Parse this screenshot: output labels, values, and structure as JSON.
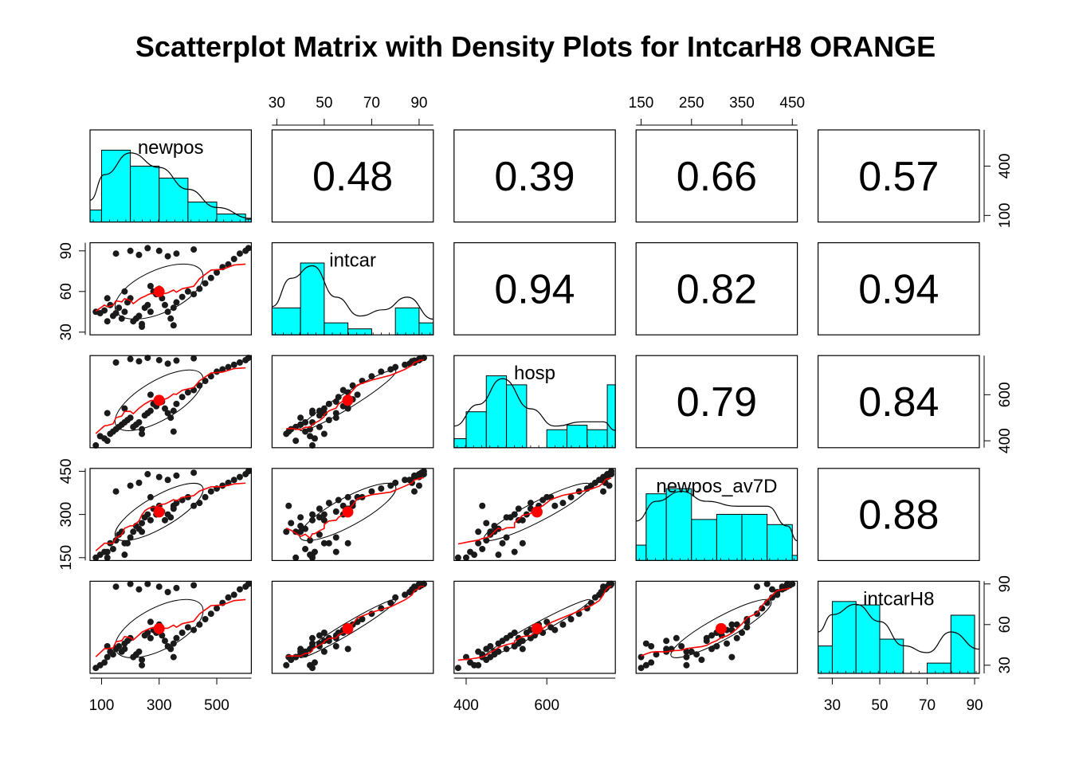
{
  "title": "Scatterplot Matrix with Density Plots for IntcarH8 ORANGE",
  "colors": {
    "hist_fill": "#00FFFF",
    "points": "#1a1a1a",
    "smooth": "#FF0000",
    "centroid": "#FF0000",
    "line": "#000000"
  },
  "chart_data": {
    "type": "scatter",
    "variables": [
      "newpos",
      "intcar",
      "hosp",
      "newpos_av7D",
      "intcarH8"
    ],
    "ranges": {
      "newpos": [
        60,
        620
      ],
      "intcar": [
        28,
        96
      ],
      "hosp": [
        370,
        770
      ],
      "newpos_av7D": [
        140,
        460
      ],
      "intcarH8": [
        24,
        92
      ]
    },
    "ticks": {
      "newpos": {
        "top": [],
        "bottom": [
          "100",
          "300",
          "500"
        ],
        "left": [],
        "right": [
          "100",
          "400"
        ]
      },
      "intcar": {
        "top": [
          "30",
          "50",
          "70",
          "90"
        ],
        "bottom": [],
        "left": [
          "30",
          "60",
          "90"
        ],
        "right": []
      },
      "hosp": {
        "top": [],
        "bottom": [
          "400",
          "600"
        ],
        "left": [],
        "right": [
          "400",
          "600"
        ]
      },
      "newpos_av7D": {
        "top": [
          "150",
          "250",
          "350",
          "450"
        ],
        "bottom": [],
        "left": [
          "150",
          "300",
          "450"
        ],
        "right": []
      },
      "intcarH8": {
        "top": [],
        "bottom": [
          "30",
          "50",
          "70",
          "90"
        ],
        "left": [],
        "right": [
          "30",
          "60",
          "90"
        ]
      }
    },
    "correlations": [
      {
        "row": 0,
        "col": 1,
        "value": "0.48"
      },
      {
        "row": 0,
        "col": 2,
        "value": "0.39"
      },
      {
        "row": 0,
        "col": 3,
        "value": "0.66"
      },
      {
        "row": 0,
        "col": 4,
        "value": "0.57"
      },
      {
        "row": 1,
        "col": 2,
        "value": "0.94"
      },
      {
        "row": 1,
        "col": 3,
        "value": "0.82"
      },
      {
        "row": 1,
        "col": 4,
        "value": "0.94"
      },
      {
        "row": 2,
        "col": 3,
        "value": "0.79"
      },
      {
        "row": 2,
        "col": 4,
        "value": "0.84"
      },
      {
        "row": 3,
        "col": 4,
        "value": "0.88"
      }
    ],
    "histograms": {
      "newpos": {
        "breaks": [
          60,
          100,
          200,
          300,
          400,
          500,
          600,
          620
        ],
        "counts": [
          3,
          18,
          14,
          11,
          5,
          2,
          0.7
        ],
        "density": [
          [
            60,
            6
          ],
          [
            110,
            13
          ],
          [
            200,
            19
          ],
          [
            300,
            15
          ],
          [
            400,
            9
          ],
          [
            500,
            4
          ],
          [
            620,
            1
          ]
        ]
      },
      "intcar": {
        "breaks": [
          28,
          40,
          50,
          60,
          70,
          80,
          90,
          96
        ],
        "counts": [
          9,
          24,
          4,
          2,
          0,
          9,
          4
        ],
        "density": [
          [
            28,
            9
          ],
          [
            36,
            18
          ],
          [
            45,
            22
          ],
          [
            55,
            12
          ],
          [
            65,
            6
          ],
          [
            75,
            8
          ],
          [
            85,
            12
          ],
          [
            96,
            5
          ]
        ]
      },
      "hosp": {
        "breaks": [
          370,
          400,
          450,
          500,
          550,
          600,
          650,
          700,
          750,
          770
        ],
        "counts": [
          2,
          8,
          16,
          14,
          0,
          4,
          5,
          4,
          14
        ],
        "density": [
          [
            370,
            5
          ],
          [
            430,
            10
          ],
          [
            490,
            16
          ],
          [
            560,
            9
          ],
          [
            620,
            5
          ],
          [
            690,
            6
          ],
          [
            740,
            6
          ],
          [
            770,
            4
          ]
        ]
      },
      "newpos_av7D": {
        "breaks": [
          140,
          160,
          200,
          250,
          300,
          350,
          400,
          450,
          460
        ],
        "counts": [
          3,
          13,
          14,
          8,
          9,
          9,
          7,
          1
        ],
        "density": [
          [
            140,
            8
          ],
          [
            180,
            12
          ],
          [
            230,
            14
          ],
          [
            280,
            12
          ],
          [
            340,
            11
          ],
          [
            400,
            11
          ],
          [
            440,
            7
          ],
          [
            460,
            4
          ]
        ]
      },
      "intcarH8": {
        "breaks": [
          24,
          30,
          40,
          50,
          60,
          70,
          80,
          90,
          92
        ],
        "counts": [
          8,
          21,
          20,
          10,
          0,
          3,
          17,
          0
        ],
        "density": [
          [
            24,
            12
          ],
          [
            30,
            17
          ],
          [
            40,
            20
          ],
          [
            50,
            15
          ],
          [
            60,
            8
          ],
          [
            70,
            6
          ],
          [
            80,
            12
          ],
          [
            92,
            7
          ]
        ]
      }
    },
    "observations": [
      [
        80,
        45,
        380,
        150,
        28
      ],
      [
        95,
        44,
        420,
        160,
        30
      ],
      [
        110,
        46,
        410,
        170,
        32
      ],
      [
        120,
        38,
        400,
        150,
        36
      ],
      [
        130,
        50,
        430,
        200,
        40
      ],
      [
        140,
        42,
        440,
        180,
        38
      ],
      [
        150,
        44,
        450,
        210,
        42
      ],
      [
        160,
        48,
        460,
        230,
        44
      ],
      [
        170,
        40,
        470,
        240,
        40
      ],
      [
        180,
        45,
        480,
        160,
        46
      ],
      [
        190,
        52,
        490,
        200,
        48
      ],
      [
        200,
        55,
        500,
        220,
        50
      ],
      [
        210,
        38,
        460,
        240,
        36
      ],
      [
        220,
        40,
        470,
        260,
        38
      ],
      [
        230,
        42,
        480,
        250,
        40
      ],
      [
        240,
        36,
        450,
        270,
        34
      ],
      [
        250,
        48,
        510,
        290,
        52
      ],
      [
        260,
        50,
        520,
        300,
        54
      ],
      [
        270,
        45,
        530,
        280,
        50
      ],
      [
        280,
        60,
        560,
        320,
        56
      ],
      [
        290,
        58,
        550,
        300,
        54
      ],
      [
        300,
        62,
        580,
        330,
        60
      ],
      [
        310,
        55,
        570,
        310,
        52
      ],
      [
        320,
        50,
        540,
        280,
        48
      ],
      [
        330,
        45,
        520,
        300,
        44
      ],
      [
        340,
        40,
        500,
        290,
        42
      ],
      [
        350,
        48,
        530,
        320,
        46
      ],
      [
        360,
        52,
        560,
        340,
        50
      ],
      [
        380,
        56,
        590,
        350,
        54
      ],
      [
        400,
        60,
        610,
        360,
        58
      ],
      [
        420,
        58,
        620,
        330,
        56
      ],
      [
        440,
        62,
        640,
        340,
        60
      ],
      [
        460,
        66,
        660,
        360,
        64
      ],
      [
        480,
        70,
        680,
        380,
        68
      ],
      [
        500,
        74,
        700,
        390,
        72
      ],
      [
        520,
        78,
        710,
        400,
        76
      ],
      [
        540,
        80,
        720,
        410,
        80
      ],
      [
        560,
        84,
        730,
        420,
        82
      ],
      [
        580,
        88,
        740,
        430,
        86
      ],
      [
        600,
        90,
        750,
        440,
        88
      ],
      [
        610,
        92,
        760,
        450,
        90
      ],
      [
        150,
        88,
        740,
        380,
        88
      ],
      [
        200,
        90,
        755,
        400,
        90
      ],
      [
        230,
        87,
        745,
        410,
        86
      ],
      [
        260,
        92,
        760,
        440,
        90
      ],
      [
        300,
        90,
        750,
        430,
        88
      ],
      [
        330,
        86,
        735,
        420,
        84
      ],
      [
        360,
        88,
        748,
        435,
        87
      ],
      [
        420,
        91,
        758,
        445,
        89
      ],
      [
        180,
        60,
        540,
        200,
        42
      ],
      [
        120,
        55,
        520,
        170,
        44
      ],
      [
        240,
        34,
        430,
        240,
        30
      ],
      [
        270,
        64,
        600,
        360,
        62
      ],
      [
        350,
        35,
        440,
        330,
        36
      ]
    ]
  }
}
